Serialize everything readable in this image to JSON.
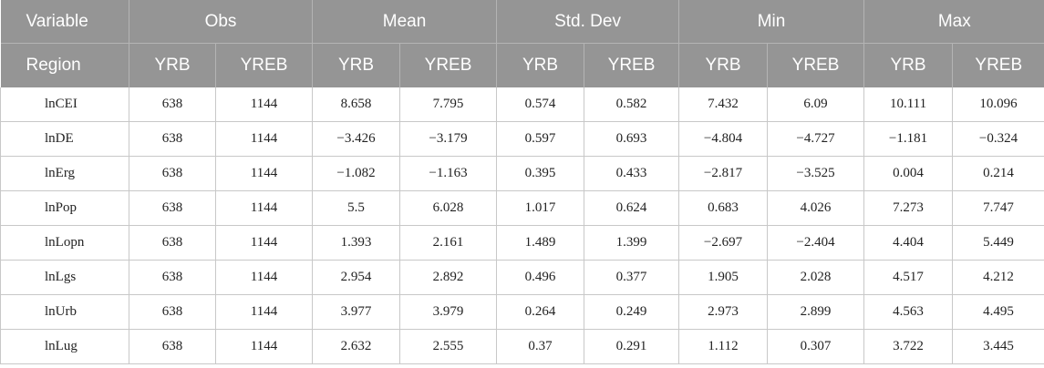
{
  "header": {
    "top": {
      "variable": "Variable",
      "obs": "Obs",
      "mean": "Mean",
      "std_dev": "Std. Dev",
      "min": "Min",
      "max": "Max"
    },
    "sub": {
      "region": "Region",
      "labels": [
        "YRB",
        "YREB",
        "YRB",
        "YREB",
        "YRB",
        "YREB",
        "YRB",
        "YREB",
        "YRB",
        "YREB"
      ]
    }
  },
  "rows": [
    {
      "name": "lnCEI",
      "cells": [
        "638",
        "1144",
        "8.658",
        "7.795",
        "0.574",
        "0.582",
        "7.432",
        "6.09",
        "10.111",
        "10.096"
      ]
    },
    {
      "name": "lnDE",
      "cells": [
        "638",
        "1144",
        "−3.426",
        "−3.179",
        "0.597",
        "0.693",
        "−4.804",
        "−4.727",
        "−1.181",
        "−0.324"
      ]
    },
    {
      "name": "lnErg",
      "cells": [
        "638",
        "1144",
        "−1.082",
        "−1.163",
        "0.395",
        "0.433",
        "−2.817",
        "−3.525",
        "0.004",
        "0.214"
      ]
    },
    {
      "name": "lnPop",
      "cells": [
        "638",
        "1144",
        "5.5",
        "6.028",
        "1.017",
        "0.624",
        "0.683",
        "4.026",
        "7.273",
        "7.747"
      ]
    },
    {
      "name": "lnLopn",
      "cells": [
        "638",
        "1144",
        "1.393",
        "2.161",
        "1.489",
        "1.399",
        "−2.697",
        "−2.404",
        "4.404",
        "5.449"
      ]
    },
    {
      "name": "lnLgs",
      "cells": [
        "638",
        "1144",
        "2.954",
        "2.892",
        "0.496",
        "0.377",
        "1.905",
        "2.028",
        "4.517",
        "4.212"
      ]
    },
    {
      "name": "lnUrb",
      "cells": [
        "638",
        "1144",
        "3.977",
        "3.979",
        "0.264",
        "0.249",
        "2.973",
        "2.899",
        "4.563",
        "4.495"
      ]
    },
    {
      "name": "lnLug",
      "cells": [
        "638",
        "1144",
        "2.632",
        "2.555",
        "0.37",
        "0.291",
        "1.112",
        "0.307",
        "3.722",
        "3.445"
      ]
    }
  ]
}
